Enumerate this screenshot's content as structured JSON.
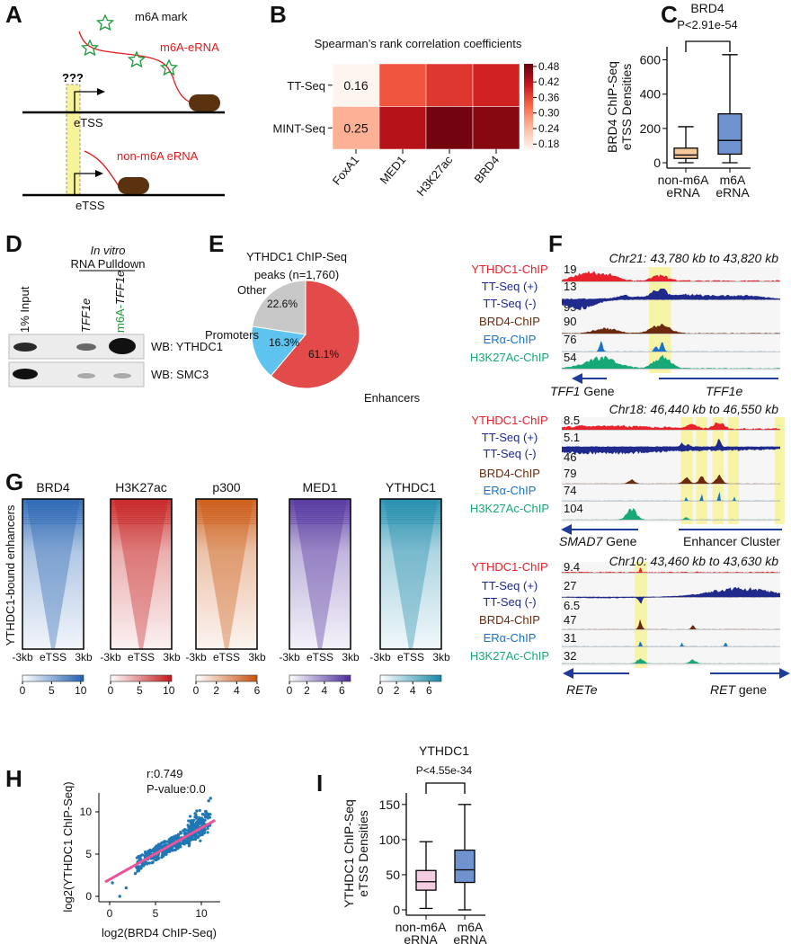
{
  "panel_letters": [
    "A",
    "B",
    "C",
    "D",
    "E",
    "F",
    "G",
    "H",
    "I"
  ],
  "panel_a": {
    "legend_label": "m6A mark",
    "m6a_erna_label": "m6A-eRNA",
    "non_m6a_erna_label": "non-m6A eRNA",
    "unknown_label": "???",
    "etss_top": "eTSS",
    "etss_bottom": "eTSS",
    "colors": {
      "rna": "#e31a1c",
      "mark": "#1a9a3a",
      "polymerase": "#5a3210",
      "highlight": "#f7f39a"
    }
  },
  "panel_d": {
    "header_italic": "In vitro",
    "header": "RNA Pulldown",
    "lanes": [
      "1% Input",
      "TFF1e",
      "m6A-",
      "TFF1e"
    ],
    "blots": [
      "WB: YTHDC1",
      "WB: SMC3"
    ]
  },
  "panel_f": {
    "track_labels": [
      "YTHDC1-ChIP",
      "TT-Seq (+)",
      "TT-Seq (-)",
      "BRD4-ChIP",
      "ERα-ChIP",
      "H3K27Ac-ChIP"
    ],
    "track_colors": [
      "#e8212b",
      "#1f2a8c",
      "#1f2a8c",
      "#6b2a0c",
      "#1a73c8",
      "#17a878"
    ],
    "loci": [
      {
        "title": "Chr21: 43,780 kb to 43,820 kb",
        "scales": [
          "19",
          "13",
          "95",
          "90",
          "76",
          "54"
        ],
        "genes": [
          {
            "name_italic": "TFF1",
            "name_rest": " Gene"
          },
          {
            "name_italic": "TFF1e",
            "name_rest": ""
          }
        ]
      },
      {
        "title": "Chr18: 46,440 kb to 46,550 kb",
        "scales": [
          "8.5",
          "5.1",
          "46",
          "79",
          "74",
          "104"
        ],
        "genes": [
          {
            "name_italic": "SMAD7",
            "name_rest": " Gene"
          },
          {
            "name_italic": "",
            "name_rest": "Enhancer Cluster"
          }
        ]
      },
      {
        "title": "Chr10: 43,460 kb to 43,630 kb",
        "scales": [
          "9.4",
          "27",
          "6.5",
          "47",
          "31",
          "32"
        ],
        "genes": [
          {
            "name_italic": "RETe",
            "name_rest": ""
          },
          {
            "name_italic": "RET",
            "name_rest": " gene"
          }
        ]
      }
    ]
  },
  "chart_data": [
    {
      "panel": "B",
      "type": "heatmap",
      "title": "Spearman’s rank correlation coefficients",
      "rows": [
        "TT-Seq",
        "MINT-Seq"
      ],
      "columns": [
        "FoxA1",
        "MED1",
        "H3K27ac",
        "BRD4"
      ],
      "values": [
        [
          0.16,
          0.34,
          0.37,
          0.39
        ],
        [
          0.25,
          0.42,
          0.48,
          0.46
        ]
      ],
      "cell_labels": [
        [
          "0.16",
          null,
          null,
          null
        ],
        [
          "0.25",
          null,
          null,
          null
        ]
      ],
      "colorbar": {
        "range": [
          0.16,
          0.49
        ],
        "ticks": [
          "0.48",
          "0.42",
          "0.36",
          "0.30",
          "0.24",
          "0.18"
        ],
        "colormap": "Reds"
      }
    },
    {
      "panel": "C",
      "type": "box",
      "title": "BRD4",
      "annotation": "P<2.91e-54",
      "ylabel_lines": [
        "BRD4 ChIP-Seq",
        "eTSS Densities"
      ],
      "categories": [
        [
          "non-m6A",
          "eRNA"
        ],
        [
          "m6A",
          "eRNA"
        ]
      ],
      "boxes": [
        {
          "min": 0,
          "q1": 25,
          "median": 45,
          "q3": 85,
          "max": 210,
          "color": "#f7c99a"
        },
        {
          "min": 0,
          "q1": 50,
          "median": 130,
          "q3": 285,
          "max": 630,
          "color": "#6f93cf"
        }
      ],
      "ylim": [
        0,
        650
      ],
      "yticks": [
        "0",
        "200",
        "400",
        "600"
      ]
    },
    {
      "panel": "E",
      "type": "pie",
      "title_lines": [
        "YTHDC1 ChIP-Seq",
        "peaks (n=1,760)"
      ],
      "slices": [
        {
          "label": "Enhancers",
          "value": 61.1,
          "text": "61.1%",
          "color": "#e34a4a"
        },
        {
          "label": "Promoters",
          "value": 16.3,
          "text": "16.3%",
          "color": "#5ec3ef"
        },
        {
          "label": "Other",
          "value": 22.6,
          "text": "22.6%",
          "color": "#c8c8c8"
        }
      ]
    },
    {
      "panel": "G",
      "type": "heatmap",
      "ylabel": "YTHDC1-bound enhancers",
      "xticks": [
        "-3kb",
        "eTSS",
        "3kb"
      ],
      "maps": [
        {
          "name": "BRD4",
          "color": "#1f5fb0",
          "ticks": [
            "0",
            "5",
            "10"
          ],
          "max": 10.5
        },
        {
          "name": "H3K27ac",
          "color": "#c41818",
          "ticks": [
            "0",
            "5",
            "10"
          ],
          "max": 10.5
        },
        {
          "name": "p300",
          "color": "#c8520a",
          "ticks": [
            "0",
            "2",
            "4",
            "6"
          ],
          "max": 6
        },
        {
          "name": "MED1",
          "color": "#4b2a9a",
          "ticks": [
            "0",
            "2",
            "4",
            "6"
          ],
          "max": 7
        },
        {
          "name": "YTHDC1",
          "color": "#1688a8",
          "ticks": [
            "0",
            "2",
            "4",
            "6"
          ],
          "max": 7.5
        }
      ]
    },
    {
      "panel": "H",
      "type": "scatter",
      "annotation_lines": [
        "r:0.749",
        "P-value:0.0"
      ],
      "xlabel": "log2(BRD4 ChIP-Seq)",
      "ylabel": "log2(YTHDC1 ChIP-Seq)",
      "xlim": [
        -1,
        12
      ],
      "ylim": [
        -0.5,
        12
      ],
      "xticks": [
        "0",
        "5",
        "10"
      ],
      "yticks": [
        "0",
        "5",
        "10"
      ],
      "regression": {
        "slope": 0.61,
        "intercept": 2.0,
        "x_range": [
          -0.5,
          11.5
        ],
        "color": "#e8559a"
      },
      "point_color": "#1f77b4",
      "sample_points": [
        [
          0.3,
          1.6
        ],
        [
          1.1,
          0.0
        ],
        [
          1.8,
          1.0
        ],
        [
          2.8,
          2.7
        ],
        [
          3.1,
          4.1
        ],
        [
          3.5,
          3.6
        ],
        [
          4,
          4.4
        ],
        [
          4.5,
          4.8
        ],
        [
          5,
          5.4
        ],
        [
          5.2,
          4.6
        ],
        [
          5.5,
          5.7
        ],
        [
          6,
          5.3
        ],
        [
          6.2,
          6.1
        ],
        [
          6.5,
          5.6
        ],
        [
          7,
          6.6
        ],
        [
          7.2,
          5.9
        ],
        [
          7.5,
          7.3
        ],
        [
          8,
          6.4
        ],
        [
          8.2,
          7.9
        ],
        [
          8.5,
          6.9
        ],
        [
          9,
          8.4
        ],
        [
          9.2,
          7.2
        ],
        [
          9.5,
          10.1
        ],
        [
          10,
          8.9
        ],
        [
          10.3,
          7.6
        ],
        [
          10.8,
          11.3
        ],
        [
          11,
          11.6
        ]
      ]
    },
    {
      "panel": "I",
      "type": "box",
      "title": "YTHDC1",
      "annotation": "P<4.55e-34",
      "ylabel_lines": [
        "YTHDC1 ChIP-Seq",
        "eTSS Densities"
      ],
      "categories": [
        [
          "non-m6A",
          "eRNA"
        ],
        [
          "m6A",
          "eRNA"
        ]
      ],
      "boxes": [
        {
          "min": 2,
          "q1": 28,
          "median": 40,
          "q3": 56,
          "max": 97,
          "color": "#f2cce0"
        },
        {
          "min": 0,
          "q1": 39,
          "median": 57,
          "q3": 85,
          "max": 150,
          "color": "#6f93cf"
        }
      ],
      "ylim": [
        0,
        160
      ],
      "yticks": [
        "0",
        "50",
        "100",
        "150"
      ]
    }
  ]
}
